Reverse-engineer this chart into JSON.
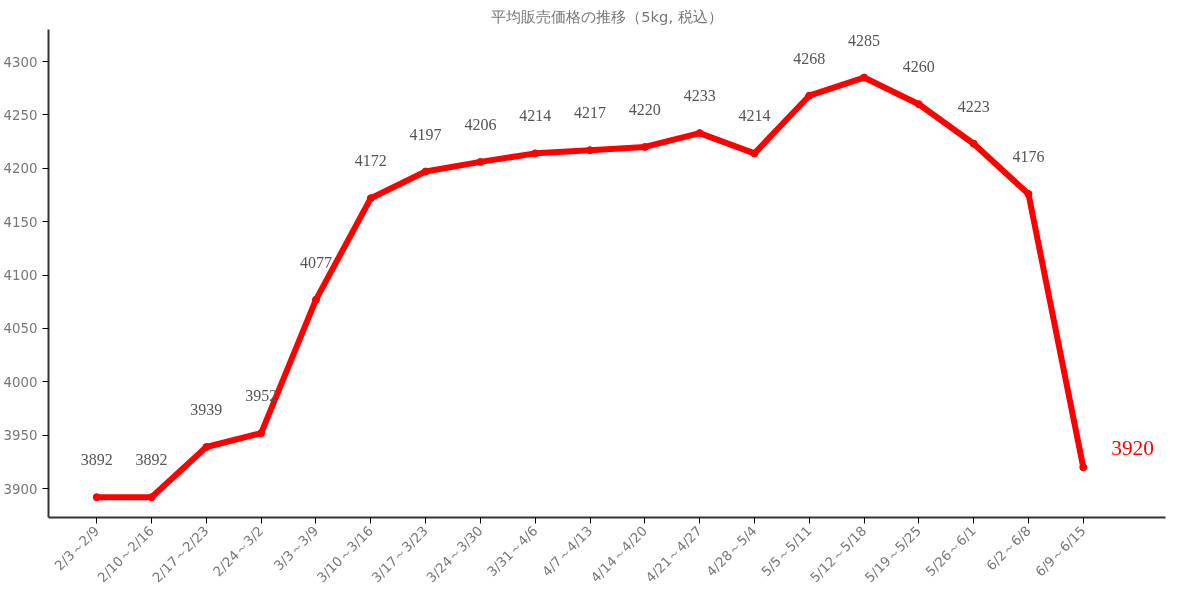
{
  "chart_data": {
    "type": "line",
    "title": "平均販売価格の推移（5kg, 税込）",
    "categories": [
      "2/3～2/9",
      "2/10～2/16",
      "2/17～2/23",
      "2/24～3/2",
      "3/3～3/9",
      "3/10～3/16",
      "3/17～3/23",
      "3/24～3/30",
      "3/31～4/6",
      "4/7～4/13",
      "4/14～4/20",
      "4/21～4/27",
      "4/28～5/4",
      "5/5～5/11",
      "5/12～5/18",
      "5/19～5/25",
      "5/26～6/1",
      "6/2～6/8",
      "6/9～6/15"
    ],
    "series": [
      {
        "color": "#ff0000",
        "values": [
          3892,
          3892,
          3939,
          3952,
          4077,
          4172,
          4197,
          4206,
          4214,
          4217,
          4220,
          4233,
          4214,
          4268,
          4285,
          4260,
          4223,
          4176,
          3920
        ]
      }
    ],
    "ylim": [
      3873,
      4330
    ],
    "yticks": [
      3900,
      3950,
      4000,
      4050,
      4100,
      4150,
      4200,
      4250,
      4300
    ],
    "data_labels": true,
    "marker": "circle",
    "grid": false
  }
}
